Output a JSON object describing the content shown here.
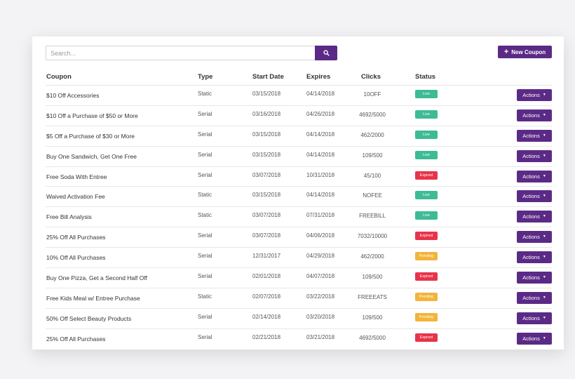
{
  "search": {
    "placeholder": "Search...",
    "icon": "search-icon"
  },
  "toolbar": {
    "new_coupon_label": "New Coupon",
    "new_coupon_icon": "plus-icon"
  },
  "columns": {
    "coupon": "Coupon",
    "type": "Type",
    "start_date": "Start Date",
    "expires": "Expires",
    "clicks": "Clicks",
    "status": "Status"
  },
  "actions_label": "Actions",
  "status_colors": {
    "Live": "#3dbb94",
    "Expired": "#e8334a",
    "Pending": "#f2b43a"
  },
  "accent_color": "#5b2a86",
  "rows": [
    {
      "coupon": "$10 Off Accessories",
      "type": "Static",
      "start": "03/15/2018",
      "expires": "04/14/2018",
      "clicks": "10OFF",
      "status": "Live"
    },
    {
      "coupon": "$10 Off a Purchase of $50 or More",
      "type": "Serial",
      "start": "03/16/2018",
      "expires": "04/26/2018",
      "clicks": "4692/5000",
      "status": "Live"
    },
    {
      "coupon": "$5 Off a Purchase of $30 or More",
      "type": "Serial",
      "start": "03/15/2018",
      "expires": "04/14/2018",
      "clicks": "462/2000",
      "status": "Live"
    },
    {
      "coupon": "Buy One Sandwich, Get One Free",
      "type": "Serial",
      "start": "03/15/2018",
      "expires": "04/14/2018",
      "clicks": "109/500",
      "status": "Live"
    },
    {
      "coupon": "Free Soda With Entree",
      "type": "Serial",
      "start": "03/07/2018",
      "expires": "10/31/2018",
      "clicks": "45/100",
      "status": "Expired"
    },
    {
      "coupon": "Waived Activation Fee",
      "type": "Static",
      "start": "03/15/2018",
      "expires": "04/14/2018",
      "clicks": "NOFEE",
      "status": "Live"
    },
    {
      "coupon": "Free Bill Analysis",
      "type": "Static",
      "start": "03/07/2018",
      "expires": "07/31/2018",
      "clicks": "FREEBILL",
      "status": "Live"
    },
    {
      "coupon": "25% Off All Purchases",
      "type": "Serial",
      "start": "03/07/2018",
      "expires": "04/06/2018",
      "clicks": "7032/10000",
      "status": "Expired"
    },
    {
      "coupon": "10% Off All Purchases",
      "type": "Serial",
      "start": "12/31/2017",
      "expires": "04/29/2018",
      "clicks": "462/2000",
      "status": "Pending"
    },
    {
      "coupon": "Buy One Pizza, Get a Second Half Off",
      "type": "Serial",
      "start": "02/01/2018",
      "expires": "04/07/2018",
      "clicks": "109/500",
      "status": "Expired"
    },
    {
      "coupon": "Free Kids Meal w/ Entree Purchase",
      "type": "Static",
      "start": "02/07/2018",
      "expires": "03/22/2018",
      "clicks": "FREEEATS",
      "status": "Pending"
    },
    {
      "coupon": "50% Off Select Beauty Products",
      "type": "Serial",
      "start": "02/14/2018",
      "expires": "03/20/2018",
      "clicks": "109/500",
      "status": "Pending"
    },
    {
      "coupon": "25% Off All Purchases",
      "type": "Serial",
      "start": "02/21/2018",
      "expires": "03/21/2018",
      "clicks": "4692/5000",
      "status": "Expired"
    }
  ]
}
